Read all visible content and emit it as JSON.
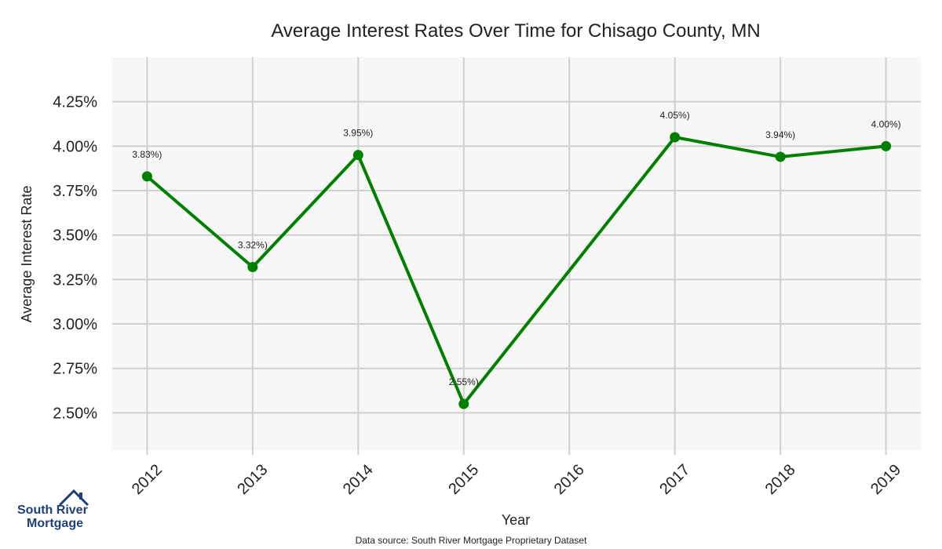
{
  "brand": {
    "logo_line1": "South River",
    "logo_line2": "Mortgage"
  },
  "source_note": "Data source: South River Mortgage Proprietary Dataset",
  "chart_data": {
    "type": "line",
    "title": "Average Interest Rates Over Time for Chisago County, MN",
    "xlabel": "Year",
    "ylabel": "Average Interest Rate",
    "x": [
      2012,
      2013,
      2014,
      2015,
      2016,
      2017,
      2018,
      2019
    ],
    "series": [
      {
        "values": [
          3.83,
          3.32,
          3.95,
          2.55,
          null,
          4.05,
          3.94,
          4.0
        ],
        "point_labels": [
          "3.83%)",
          "3.32%)",
          "3.95%)",
          "2.55%)",
          "",
          "4.05%)",
          "3.94%)",
          "4.00%)"
        ],
        "color": "#008000"
      }
    ],
    "yticks": [
      2.5,
      2.75,
      3.0,
      3.25,
      3.5,
      3.75,
      4.0,
      4.25
    ],
    "ytick_labels": [
      "2.50%",
      "2.75%",
      "3.00%",
      "3.25%",
      "3.50%",
      "3.75%",
      "4.00%",
      "4.25%"
    ],
    "xtick_labels": [
      "2012",
      "2013",
      "2014",
      "2015",
      "2016",
      "2017",
      "2018",
      "2019"
    ],
    "ylim": [
      2.29,
      4.5
    ],
    "xlim": [
      2011.67,
      2019.33
    ],
    "grid": true,
    "background": "#f7f7f7",
    "legend": "none"
  }
}
